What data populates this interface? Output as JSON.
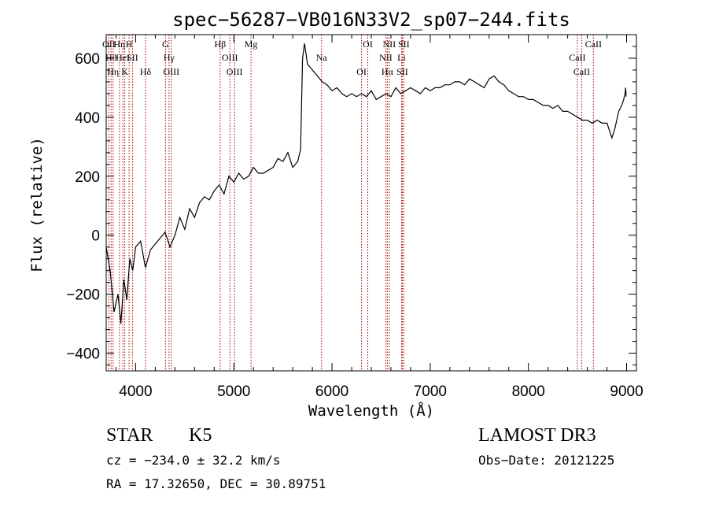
{
  "chart_data": {
    "type": "line",
    "title": "spec−56287−VB016N33V2_sp07−244.fits",
    "xlabel": "Wavelength (Å)",
    "ylabel": "Flux (relative)",
    "xlim": [
      3700,
      9100
    ],
    "ylim": [
      -460,
      680
    ],
    "xticks": [
      {
        "value": 4000,
        "label": "4000"
      },
      {
        "value": 5000,
        "label": "5000"
      },
      {
        "value": 6000,
        "label": "6000"
      },
      {
        "value": 7000,
        "label": "7000"
      },
      {
        "value": 8000,
        "label": "8000"
      },
      {
        "value": 9000,
        "label": "9000"
      }
    ],
    "yticks": [
      {
        "value": -400,
        "label": "−400"
      },
      {
        "value": -200,
        "label": "−200"
      },
      {
        "value": 0,
        "label": "0"
      },
      {
        "value": 200,
        "label": "200"
      },
      {
        "value": 400,
        "label": "400"
      },
      {
        "value": 600,
        "label": "600"
      }
    ],
    "series": [
      {
        "name": "flux",
        "x": [
          3700,
          3740,
          3780,
          3820,
          3850,
          3880,
          3910,
          3940,
          3970,
          4000,
          4050,
          4100,
          4150,
          4200,
          4250,
          4300,
          4350,
          4400,
          4450,
          4500,
          4550,
          4600,
          4650,
          4700,
          4750,
          4800,
          4850,
          4900,
          4950,
          5000,
          5050,
          5100,
          5150,
          5200,
          5250,
          5300,
          5350,
          5400,
          5450,
          5500,
          5550,
          5600,
          5650,
          5680,
          5700,
          5720,
          5750,
          5800,
          5850,
          5900,
          5950,
          6000,
          6050,
          6100,
          6150,
          6200,
          6250,
          6300,
          6350,
          6400,
          6450,
          6500,
          6550,
          6600,
          6650,
          6700,
          6750,
          6800,
          6850,
          6900,
          6950,
          7000,
          7050,
          7100,
          7150,
          7200,
          7250,
          7300,
          7350,
          7400,
          7450,
          7500,
          7550,
          7600,
          7650,
          7700,
          7750,
          7800,
          7850,
          7900,
          7950,
          8000,
          8050,
          8100,
          8150,
          8200,
          8250,
          8300,
          8350,
          8400,
          8450,
          8500,
          8550,
          8600,
          8650,
          8700,
          8750,
          8800,
          8830,
          8850,
          8880,
          8900,
          8920,
          8950,
          8970,
          8985,
          8990,
          8995
        ],
        "y": [
          -40,
          -120,
          -260,
          -200,
          -300,
          -150,
          -220,
          -80,
          -120,
          -40,
          -20,
          -110,
          -50,
          -30,
          -10,
          10,
          -40,
          0,
          60,
          20,
          90,
          60,
          110,
          130,
          120,
          150,
          170,
          140,
          200,
          180,
          210,
          190,
          200,
          230,
          210,
          210,
          220,
          230,
          260,
          250,
          280,
          230,
          250,
          290,
          600,
          650,
          580,
          560,
          540,
          520,
          510,
          490,
          500,
          480,
          470,
          480,
          470,
          480,
          470,
          490,
          460,
          470,
          480,
          470,
          500,
          480,
          490,
          500,
          490,
          480,
          500,
          490,
          500,
          500,
          510,
          510,
          520,
          520,
          510,
          530,
          520,
          510,
          500,
          530,
          540,
          520,
          510,
          490,
          480,
          470,
          470,
          460,
          460,
          450,
          440,
          440,
          430,
          440,
          420,
          420,
          410,
          400,
          390,
          390,
          380,
          390,
          380,
          380,
          350,
          330,
          360,
          390,
          420,
          440,
          460,
          480,
          500,
          470
        ]
      }
    ],
    "line_marks": [
      {
        "x": 3727,
        "label": "OII"
      },
      {
        "x": 3750,
        "label": "Hθ"
      },
      {
        "x": 3770,
        "label": "Hη"
      },
      {
        "x": 3835,
        "label": "Hη"
      },
      {
        "x": 3869,
        "label": "HeI"
      },
      {
        "x": 3889,
        "label": "K"
      },
      {
        "x": 3933,
        "label": "H"
      },
      {
        "x": 3968,
        "label": "SII"
      },
      {
        "x": 4101,
        "label": "Hδ"
      },
      {
        "x": 4304,
        "label": "G"
      },
      {
        "x": 4340,
        "label": "Hγ"
      },
      {
        "x": 4363,
        "label": "OIII"
      },
      {
        "x": 4861,
        "label": "Hβ"
      },
      {
        "x": 4959,
        "label": "OIII"
      },
      {
        "x": 5007,
        "label": "OIII"
      },
      {
        "x": 5175,
        "label": "Mg"
      },
      {
        "x": 5893,
        "label": "Na"
      },
      {
        "x": 6300,
        "label": "OI"
      },
      {
        "x": 6364,
        "label": "OI"
      },
      {
        "x": 6548,
        "label": "NII"
      },
      {
        "x": 6563,
        "label": "Hα"
      },
      {
        "x": 6583,
        "label": "NII"
      },
      {
        "x": 6708,
        "label": "Li"
      },
      {
        "x": 6716,
        "label": "SII"
      },
      {
        "x": 6731,
        "label": "SII"
      },
      {
        "x": 8498,
        "label": "CaII"
      },
      {
        "x": 8542,
        "label": "CaII"
      },
      {
        "x": 8662,
        "label": "CaII"
      }
    ]
  },
  "info": {
    "object_type": "STAR",
    "subclass": "K5",
    "redshift": "cz = −234.0 ± 32.2 km/s",
    "coords": "RA =  17.32650, DEC =  30.89751",
    "survey": "LAMOST DR3",
    "obs_date": "Obs−Date: 20121225"
  },
  "colors": {
    "line_mark": "#aa0000",
    "spectrum": "#000000"
  }
}
